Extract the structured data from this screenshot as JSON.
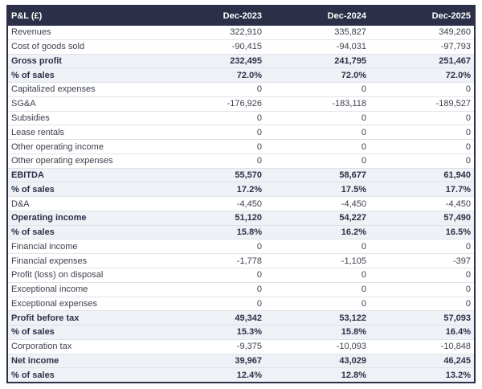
{
  "table": {
    "title": "P&L (£)",
    "columns": [
      "Dec-2023",
      "Dec-2024",
      "Dec-2025"
    ],
    "rows": [
      {
        "label": "Revenues",
        "values": [
          "322,910",
          "335,827",
          "349,260"
        ],
        "emphasis": false
      },
      {
        "label": "Cost of goods sold",
        "values": [
          "-90,415",
          "-94,031",
          "-97,793"
        ],
        "emphasis": false
      },
      {
        "label": "Gross profit",
        "values": [
          "232,495",
          "241,795",
          "251,467"
        ],
        "emphasis": true
      },
      {
        "label": "% of sales",
        "values": [
          "72.0%",
          "72.0%",
          "72.0%"
        ],
        "emphasis": true
      },
      {
        "label": "Capitalized expenses",
        "values": [
          "0",
          "0",
          "0"
        ],
        "emphasis": false
      },
      {
        "label": "SG&A",
        "values": [
          "-176,926",
          "-183,118",
          "-189,527"
        ],
        "emphasis": false
      },
      {
        "label": "Subsidies",
        "values": [
          "0",
          "0",
          "0"
        ],
        "emphasis": false
      },
      {
        "label": "Lease rentals",
        "values": [
          "0",
          "0",
          "0"
        ],
        "emphasis": false
      },
      {
        "label": "Other operating income",
        "values": [
          "0",
          "0",
          "0"
        ],
        "emphasis": false
      },
      {
        "label": "Other operating expenses",
        "values": [
          "0",
          "0",
          "0"
        ],
        "emphasis": false
      },
      {
        "label": "EBITDA",
        "values": [
          "55,570",
          "58,677",
          "61,940"
        ],
        "emphasis": true
      },
      {
        "label": "% of sales",
        "values": [
          "17.2%",
          "17.5%",
          "17.7%"
        ],
        "emphasis": true
      },
      {
        "label": "D&A",
        "values": [
          "-4,450",
          "-4,450",
          "-4,450"
        ],
        "emphasis": false
      },
      {
        "label": "Operating income",
        "values": [
          "51,120",
          "54,227",
          "57,490"
        ],
        "emphasis": true
      },
      {
        "label": "% of sales",
        "values": [
          "15.8%",
          "16.2%",
          "16.5%"
        ],
        "emphasis": true
      },
      {
        "label": "Financial income",
        "values": [
          "0",
          "0",
          "0"
        ],
        "emphasis": false
      },
      {
        "label": "Financial expenses",
        "values": [
          "-1,778",
          "-1,105",
          "-397"
        ],
        "emphasis": false
      },
      {
        "label": "Profit (loss) on disposal",
        "values": [
          "0",
          "0",
          "0"
        ],
        "emphasis": false
      },
      {
        "label": "Exceptional income",
        "values": [
          "0",
          "0",
          "0"
        ],
        "emphasis": false
      },
      {
        "label": "Exceptional expenses",
        "values": [
          "0",
          "0",
          "0"
        ],
        "emphasis": false
      },
      {
        "label": "Profit before tax",
        "values": [
          "49,342",
          "53,122",
          "57,093"
        ],
        "emphasis": true
      },
      {
        "label": "% of sales",
        "values": [
          "15.3%",
          "15.8%",
          "16.4%"
        ],
        "emphasis": true
      },
      {
        "label": "Corporation tax",
        "values": [
          "-9,375",
          "-10,093",
          "-10,848"
        ],
        "emphasis": false
      },
      {
        "label": "Net income",
        "values": [
          "39,967",
          "43,029",
          "46,245"
        ],
        "emphasis": true
      },
      {
        "label": "% of sales",
        "values": [
          "12.4%",
          "12.8%",
          "13.2%"
        ],
        "emphasis": true
      }
    ]
  },
  "colors": {
    "header_bg": "#2c2f48",
    "header_text": "#ffffff",
    "body_text": "#3d414d",
    "emphasis_text": "#2e3147",
    "highlight_bg": "#eef1f6",
    "row_border": "#dfe3e9",
    "outer_border": "#2c2f48"
  }
}
